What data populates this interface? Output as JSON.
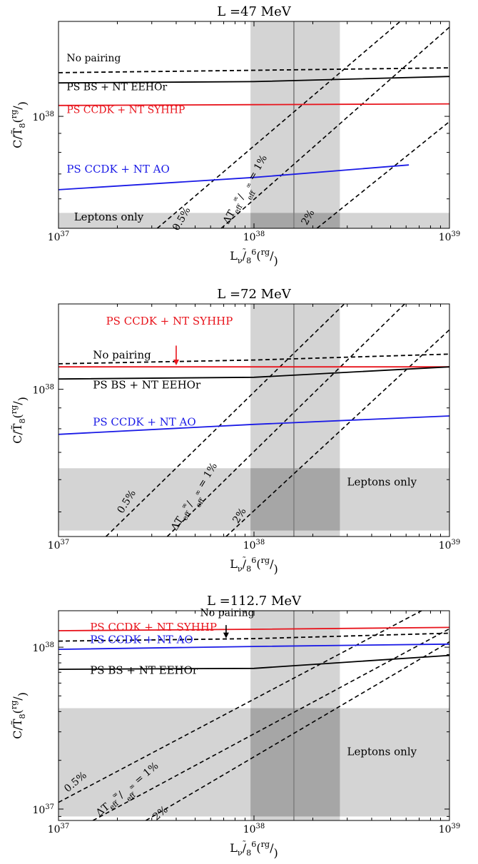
{
  "colors": {
    "red": "#e8141c",
    "blue": "#1a1ae6",
    "black": "#000000",
    "band": "#d4d4d4",
    "overlap": "#a6a6a6",
    "vline": "#7f7f7f"
  },
  "chart_data": [
    {
      "type": "line",
      "title": "L =47 MeV",
      "xlabel": "L_ν/T̃_8^6(erg/s)",
      "ylabel": "C/T̃_8(erg/K)",
      "xscale": "log",
      "yscale": "log",
      "xlim": [
        1e+37,
        1e+39
      ],
      "ylim": [
        5e+37,
        1.8e+38
      ],
      "xticks": [
        "10^37",
        "10^38",
        "10^39"
      ],
      "yticks": [
        "10^38"
      ],
      "shaded_x_band": [
        9.6e+37,
        2.75e+38
      ],
      "vline_x": 1.6e+38,
      "leptons_band": [
        5e+37,
        5.5e+37
      ],
      "leptons_label": "Leptons only",
      "series": [
        {
          "name": "No pairing",
          "color": "black",
          "dash": true,
          "x": [
            1e+37,
            1e+38,
            1e+39
          ],
          "y": [
            1.31e+38,
            1.33e+38,
            1.35e+38
          ]
        },
        {
          "name": "PS BS + NT EEHOr",
          "color": "black",
          "dash": false,
          "x": [
            1e+37,
            1e+38,
            1e+39
          ],
          "y": [
            1.23e+38,
            1.24e+38,
            1.28e+38
          ]
        },
        {
          "name": "PS CCDK + NT SYHHP",
          "color": "red",
          "dash": false,
          "x": [
            1e+37,
            1e+38,
            1e+39
          ],
          "y": [
            1.07e+38,
            1.075e+38,
            1.08e+38
          ]
        },
        {
          "name": "PS CCDK + NT AO",
          "color": "blue",
          "dash": false,
          "x": [
            1e+37,
            1e+38,
            6.2e+38
          ],
          "y": [
            6.35e+37,
            6.85e+37,
            7.4e+37
          ]
        }
      ],
      "cooling_lines": [
        {
          "name": "0.5%",
          "x": [
            3.2e+37,
            5.6e+38
          ],
          "y": [
            5e+37,
            1.8e+38
          ]
        },
        {
          "name": "ΔT_eff^∞/T_eff^∞ = 1%",
          "x": [
            6.8e+37,
            1.08e+39
          ],
          "y": [
            5e+37,
            1.8e+38
          ]
        },
        {
          "name": "2%",
          "x": [
            2.1e+38,
            1.08e+39
          ],
          "y": [
            5e+37,
            1e+38
          ]
        }
      ],
      "text_labels": [
        {
          "text": "No pairing",
          "color": "black"
        },
        {
          "text": "PS BS + NT EEHOr",
          "color": "black"
        },
        {
          "text": "PS CCDK + NT SYHHP",
          "color": "red"
        },
        {
          "text": "PS CCDK + NT AO",
          "color": "blue"
        },
        {
          "text": "0.5%",
          "color": "black"
        },
        {
          "text": "ΔT_eff^∞/T_eff^∞ = 1%",
          "color": "black"
        },
        {
          "text": "2%",
          "color": "black"
        }
      ]
    },
    {
      "type": "line",
      "title": "L =72 MeV",
      "xlabel": "L_ν/T̃_8^6(erg/s)",
      "ylabel": "C/T̃_8(erg/K)",
      "xscale": "log",
      "yscale": "log",
      "xlim": [
        1e+37,
        1e+39
      ],
      "ylim": [
        4.35e+37,
        1.62e+38
      ],
      "xticks": [
        "10^37",
        "10^38",
        "10^39"
      ],
      "yticks": [
        "10^38"
      ],
      "shaded_x_band": [
        9.6e+37,
        2.75e+38
      ],
      "vline_x": 1.6e+38,
      "leptons_band": [
        4.5e+37,
        6.4e+37
      ],
      "leptons_label": "Leptons only",
      "series": [
        {
          "name": "No pairing",
          "color": "black",
          "dash": true,
          "x": [
            1e+37,
            1e+38,
            1e+39
          ],
          "y": [
            1.155e+38,
            1.18e+38,
            1.22e+38
          ]
        },
        {
          "name": "PS CCDK + NT SYHHP",
          "color": "red",
          "dash": false,
          "x": [
            1e+37,
            1e+38,
            1e+39
          ],
          "y": [
            1.135e+38,
            1.135e+38,
            1.135e+38
          ]
        },
        {
          "name": "PS BS + NT EEHOr",
          "color": "black",
          "dash": false,
          "x": [
            1e+37,
            1e+38,
            1e+39
          ],
          "y": [
            1.06e+38,
            1.07e+38,
            1.135e+38
          ]
        },
        {
          "name": "PS CCDK + NT AO",
          "color": "blue",
          "dash": false,
          "x": [
            1e+37,
            1e+38,
            1e+39
          ],
          "y": [
            7.75e+37,
            8.2e+37,
            8.6e+37
          ]
        }
      ],
      "cooling_lines": [
        {
          "name": "0.5%",
          "x": [
            1.75e+37,
            2.9e+38
          ],
          "y": [
            4.35e+37,
            1.62e+38
          ]
        },
        {
          "name": "ΔT_eff^∞/T_eff^∞ = 1%",
          "x": [
            3.6e+37,
            5.9e+38
          ],
          "y": [
            4.35e+37,
            1.62e+38
          ]
        },
        {
          "name": "2%",
          "x": [
            7.2e+37,
            1e+39
          ],
          "y": [
            4.35e+37,
            1.4e+38
          ]
        }
      ],
      "text_labels": [
        {
          "text": "PS CCDK + NT SYHHP",
          "color": "red"
        },
        {
          "text": "No pairing",
          "color": "black"
        },
        {
          "text": "PS BS + NT EEHOr",
          "color": "black"
        },
        {
          "text": "PS CCDK + NT AO",
          "color": "blue"
        },
        {
          "text": "0.5%",
          "color": "black"
        },
        {
          "text": "ΔT_eff^∞/T_eff^∞ = 1%",
          "color": "black"
        },
        {
          "text": "2%",
          "color": "black"
        }
      ],
      "arrow": {
        "text": "PS CCDK + NT SYHHP",
        "color": "red"
      }
    },
    {
      "type": "line",
      "title": "L =112.7 MeV",
      "xlabel": "L_ν/T̃_8^6(erg/s)",
      "ylabel": "C/T̃_8(erg/K)",
      "xscale": "log",
      "yscale": "log",
      "xlim": [
        1e+37,
        1e+39
      ],
      "ylim": [
        8.5e+36,
        1.68e+38
      ],
      "xticks": [
        "10^37",
        "10^38",
        "10^39"
      ],
      "yticks": [
        "10^37",
        "10^38"
      ],
      "shaded_x_band": [
        9.6e+37,
        2.75e+38
      ],
      "vline_x": 1.6e+38,
      "leptons_band": [
        9e+36,
        4.2e+37
      ],
      "leptons_label": "Leptons only",
      "series": [
        {
          "name": "PS CCDK + NT SYHHP",
          "color": "red",
          "dash": false,
          "x": [
            1e+37,
            1e+38,
            1e+39
          ],
          "y": [
            1.265e+38,
            1.29e+38,
            1.325e+38
          ]
        },
        {
          "name": "No pairing",
          "color": "black",
          "dash": true,
          "x": [
            1e+37,
            1e+38,
            1e+39
          ],
          "y": [
            1.09e+38,
            1.13e+38,
            1.22e+38
          ]
        },
        {
          "name": "PS CCDK + NT AO",
          "color": "blue",
          "dash": false,
          "x": [
            1e+37,
            1e+38,
            1e+39
          ],
          "y": [
            9.7e+37,
            1.01e+38,
            1.045e+38
          ]
        },
        {
          "name": "PS BS + NT EEHOr",
          "color": "black",
          "dash": false,
          "x": [
            1e+37,
            1e+38,
            1e+39
          ],
          "y": [
            7.3e+37,
            7.4e+37,
            8.9e+37
          ]
        }
      ],
      "cooling_lines": [
        {
          "name": "0.5%",
          "x": [
            1e+37,
            7.2e+38
          ],
          "y": [
            1.1e+37,
            1.68e+38
          ]
        },
        {
          "name": "ΔT_eff^∞/T_eff^∞ = 1%",
          "x": [
            1.5e+37,
            1e+39
          ],
          "y": [
            8.5e+36,
            1.3e+38
          ]
        },
        {
          "name": "2%",
          "x": [
            2.8e+37,
            1e+39
          ],
          "y": [
            8.5e+36,
            1.08e+38
          ]
        }
      ],
      "text_labels": [
        {
          "text": "No pairing",
          "color": "black"
        },
        {
          "text": "PS CCDK + NT SYHHP",
          "color": "red"
        },
        {
          "text": "PS CCDK + NT AO",
          "color": "blue"
        },
        {
          "text": "PS BS + NT EEHOr",
          "color": "black"
        },
        {
          "text": "0.5%",
          "color": "black"
        },
        {
          "text": "ΔT_eff^∞/T_eff^∞ = 1%",
          "color": "black"
        },
        {
          "text": "2%",
          "color": "black"
        }
      ],
      "arrow": {
        "text": "No pairing",
        "color": "black"
      }
    }
  ]
}
